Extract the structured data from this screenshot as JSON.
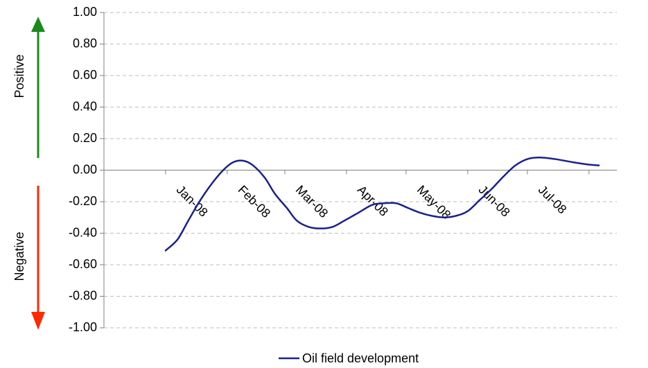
{
  "chart_data": {
    "type": "line",
    "title": "",
    "xlabel": "",
    "ylabel": "",
    "ylim": [
      -1.0,
      1.0
    ],
    "y_ticks": [
      "1.00",
      "0.80",
      "0.60",
      "0.40",
      "0.20",
      "0.00",
      "-0.20",
      "-0.40",
      "-0.60",
      "-0.80",
      "-1.00"
    ],
    "x_tick_labels": [
      "Jan-08",
      "Feb-08",
      "Mar-08",
      "Apr-08",
      "May-08",
      "Jun-08",
      "Jul-08"
    ],
    "grid": true,
    "legend_position": "bottom",
    "side_labels": {
      "positive": "Positive",
      "negative": "Negative"
    },
    "colors": {
      "series": "#1a1f8f",
      "positive_arrow": "#1a8a1a",
      "negative_arrow": "#ff2a00",
      "grid": "#bdbdbd",
      "axis": "#7f7f7f"
    },
    "series": [
      {
        "name": "Oil field development",
        "points": [
          {
            "x": "2008-01-01",
            "y": -0.51
          },
          {
            "x": "2008-01-07",
            "y": -0.44
          },
          {
            "x": "2008-01-12",
            "y": -0.33
          },
          {
            "x": "2008-01-18",
            "y": -0.2
          },
          {
            "x": "2008-01-24",
            "y": -0.09
          },
          {
            "x": "2008-01-30",
            "y": 0.0
          },
          {
            "x": "2008-02-04",
            "y": 0.05
          },
          {
            "x": "2008-02-09",
            "y": 0.06
          },
          {
            "x": "2008-02-14",
            "y": 0.03
          },
          {
            "x": "2008-02-20",
            "y": -0.05
          },
          {
            "x": "2008-02-25",
            "y": -0.15
          },
          {
            "x": "2008-03-02",
            "y": -0.24
          },
          {
            "x": "2008-03-07",
            "y": -0.32
          },
          {
            "x": "2008-03-13",
            "y": -0.36
          },
          {
            "x": "2008-03-19",
            "y": -0.37
          },
          {
            "x": "2008-03-25",
            "y": -0.36
          },
          {
            "x": "2008-03-31",
            "y": -0.32
          },
          {
            "x": "2008-04-07",
            "y": -0.27
          },
          {
            "x": "2008-04-14",
            "y": -0.22
          },
          {
            "x": "2008-04-20",
            "y": -0.21
          },
          {
            "x": "2008-04-26",
            "y": -0.21
          },
          {
            "x": "2008-05-02",
            "y": -0.24
          },
          {
            "x": "2008-05-08",
            "y": -0.27
          },
          {
            "x": "2008-05-14",
            "y": -0.29
          },
          {
            "x": "2008-05-20",
            "y": -0.3
          },
          {
            "x": "2008-05-26",
            "y": -0.29
          },
          {
            "x": "2008-06-01",
            "y": -0.26
          },
          {
            "x": "2008-06-07",
            "y": -0.19
          },
          {
            "x": "2008-06-13",
            "y": -0.12
          },
          {
            "x": "2008-06-19",
            "y": -0.04
          },
          {
            "x": "2008-06-25",
            "y": 0.03
          },
          {
            "x": "2008-07-01",
            "y": 0.07
          },
          {
            "x": "2008-07-07",
            "y": 0.08
          },
          {
            "x": "2008-07-15",
            "y": 0.07
          },
          {
            "x": "2008-07-24",
            "y": 0.05
          },
          {
            "x": "2008-08-01",
            "y": 0.035
          },
          {
            "x": "2008-08-06",
            "y": 0.03
          }
        ]
      }
    ]
  }
}
